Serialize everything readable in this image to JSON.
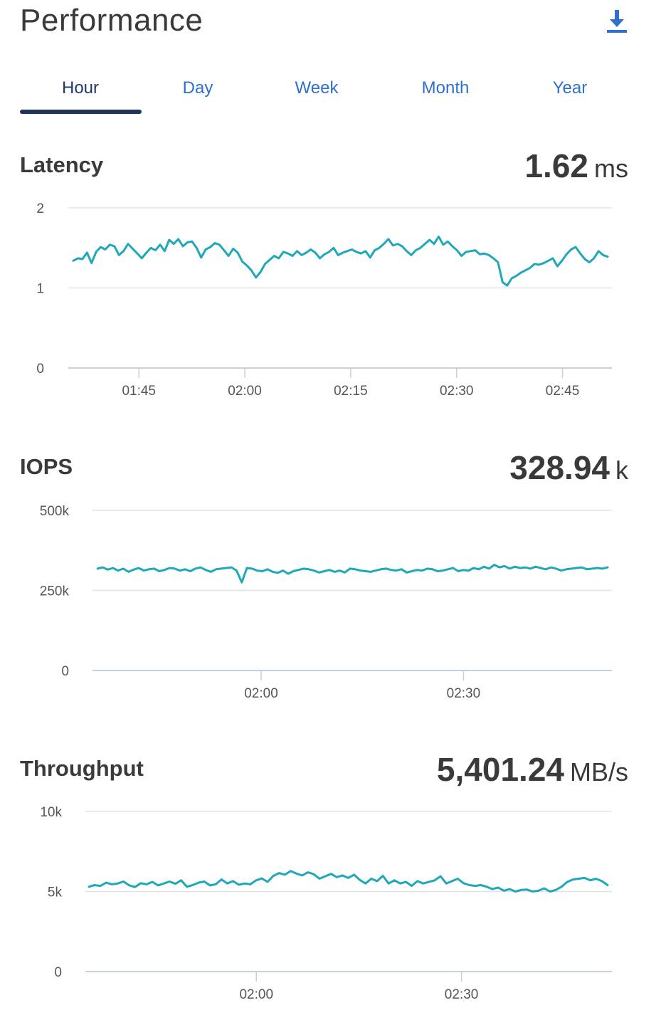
{
  "header": {
    "title": "Performance",
    "download_icon": "download-icon"
  },
  "tabs": [
    {
      "label": "Hour",
      "active": true
    },
    {
      "label": "Day",
      "active": false
    },
    {
      "label": "Week",
      "active": false
    },
    {
      "label": "Month",
      "active": false
    },
    {
      "label": "Year",
      "active": false
    }
  ],
  "colors": {
    "line": "#1fa8b8",
    "grid": "#dfe3e8",
    "axis": "#c6d0dc",
    "tab_active": "#1e3a68",
    "tab": "#2f6fcf"
  },
  "chart_data": [
    {
      "type": "line",
      "title": "Latency",
      "current_value": "1.62",
      "current_unit": "ms",
      "ylim": [
        0,
        2
      ],
      "y_ticks": [
        0,
        1,
        2
      ],
      "y_tick_labels": [
        "0",
        "1",
        "2"
      ],
      "x_ticks": [
        "01:45",
        "02:00",
        "02:15",
        "02:30",
        "02:45"
      ],
      "x_range": [
        "01:35",
        "02:52"
      ],
      "series": [
        {
          "values": [
            1.34,
            1.37,
            1.36,
            1.44,
            1.31,
            1.45,
            1.51,
            1.48,
            1.54,
            1.52,
            1.41,
            1.46,
            1.55,
            1.49,
            1.43,
            1.37,
            1.44,
            1.5,
            1.47,
            1.54,
            1.46,
            1.6,
            1.55,
            1.61,
            1.52,
            1.57,
            1.58,
            1.5,
            1.38,
            1.48,
            1.51,
            1.56,
            1.54,
            1.47,
            1.4,
            1.49,
            1.44,
            1.33,
            1.28,
            1.22,
            1.13,
            1.2,
            1.3,
            1.35,
            1.4,
            1.37,
            1.45,
            1.43,
            1.4,
            1.46,
            1.41,
            1.44,
            1.48,
            1.44,
            1.37,
            1.42,
            1.45,
            1.5,
            1.41,
            1.44,
            1.46,
            1.48,
            1.45,
            1.43,
            1.46,
            1.38,
            1.47,
            1.5,
            1.55,
            1.61,
            1.53,
            1.55,
            1.52,
            1.46,
            1.41,
            1.47,
            1.5,
            1.55,
            1.6,
            1.55,
            1.64,
            1.54,
            1.58,
            1.52,
            1.47,
            1.4,
            1.45,
            1.46,
            1.47,
            1.42,
            1.43,
            1.41,
            1.37,
            1.32,
            1.07,
            1.03,
            1.12,
            1.15,
            1.19,
            1.22,
            1.25,
            1.3,
            1.29,
            1.31,
            1.34,
            1.37,
            1.27,
            1.34,
            1.42,
            1.48,
            1.51,
            1.43,
            1.36,
            1.32,
            1.37,
            1.46,
            1.41,
            1.39
          ]
        }
      ]
    },
    {
      "type": "line",
      "title": "IOPS",
      "current_value": "328.94",
      "current_unit": "k",
      "ylim": [
        0,
        500
      ],
      "y_ticks": [
        0,
        250,
        500
      ],
      "y_tick_labels": [
        "0",
        "250k",
        "500k"
      ],
      "x_ticks": [
        "02:00",
        "02:30"
      ],
      "x_range": [
        "01:35",
        "02:52"
      ],
      "series": [
        {
          "values": [
            318,
            322,
            315,
            320,
            312,
            318,
            308,
            315,
            320,
            312,
            316,
            318,
            310,
            314,
            320,
            318,
            312,
            316,
            310,
            318,
            322,
            314,
            308,
            316,
            318,
            320,
            322,
            312,
            275,
            320,
            318,
            312,
            310,
            316,
            308,
            305,
            312,
            302,
            310,
            314,
            318,
            316,
            312,
            306,
            310,
            314,
            308,
            312,
            306,
            318,
            316,
            312,
            310,
            308,
            312,
            316,
            318,
            314,
            312,
            316,
            306,
            310,
            314,
            312,
            318,
            316,
            310,
            312,
            316,
            320,
            310,
            314,
            312,
            320,
            316,
            324,
            318,
            330,
            322,
            326,
            318,
            324,
            320,
            322,
            318,
            324,
            320,
            316,
            322,
            318,
            312,
            316,
            318,
            320,
            322,
            316,
            318,
            320,
            318,
            322
          ]
        }
      ]
    },
    {
      "type": "line",
      "title": "Throughput",
      "current_value": "5,401.24",
      "current_unit": "MB/s",
      "ylim": [
        0,
        10000
      ],
      "y_ticks": [
        0,
        5000,
        10000
      ],
      "y_tick_labels": [
        "0",
        "5k",
        "10k"
      ],
      "x_ticks": [
        "02:00",
        "02:30"
      ],
      "x_range": [
        "01:35",
        "02:52"
      ],
      "series": [
        {
          "values": [
            5300,
            5400,
            5350,
            5550,
            5450,
            5500,
            5620,
            5380,
            5280,
            5520,
            5450,
            5600,
            5380,
            5500,
            5620,
            5480,
            5700,
            5300,
            5400,
            5550,
            5620,
            5380,
            5450,
            5750,
            5500,
            5650,
            5420,
            5500,
            5450,
            5700,
            5820,
            5600,
            5980,
            6150,
            6050,
            6280,
            6120,
            6000,
            6200,
            6080,
            5800,
            5950,
            6100,
            5900,
            6000,
            5850,
            6050,
            5720,
            5500,
            5800,
            5650,
            5980,
            5500,
            5700,
            5500,
            5600,
            5350,
            5650,
            5500,
            5600,
            5700,
            5950,
            5500,
            5650,
            5800,
            5520,
            5400,
            5350,
            5400,
            5300,
            5150,
            5250,
            5050,
            5150,
            5000,
            5100,
            5120,
            5000,
            5050,
            5200,
            5000,
            5100,
            5300,
            5600,
            5750,
            5800,
            5850,
            5700,
            5800,
            5650,
            5400
          ]
        }
      ]
    }
  ]
}
